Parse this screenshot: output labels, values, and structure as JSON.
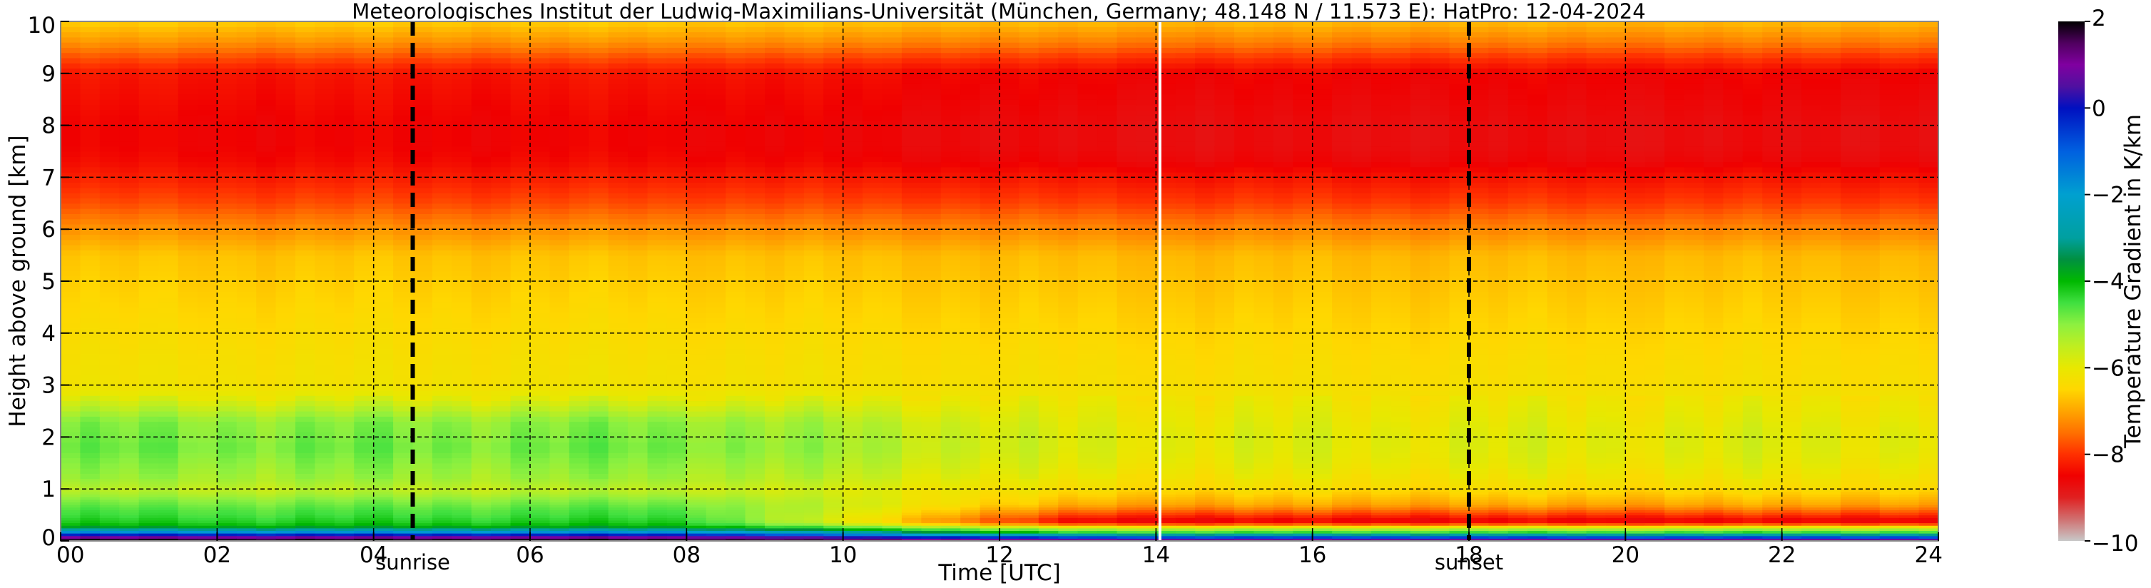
{
  "chart_data": {
    "type": "heatmap",
    "title": "Meteorologisches Institut der Ludwig-Maximilians-Universität (München, Germany; 48.148 N / 11.573 E):    HatPro: 12-04-2024",
    "xlabel": "Time [UTC]",
    "ylabel": "Height above ground [km]",
    "xlim": [
      0,
      24
    ],
    "ylim": [
      0,
      10
    ],
    "x_ticks": [
      0,
      2,
      4,
      6,
      8,
      10,
      12,
      14,
      16,
      18,
      20,
      22,
      24
    ],
    "x_tick_labels": [
      "00",
      "02",
      "04",
      "06",
      "08",
      "10",
      "12",
      "14",
      "16",
      "18",
      "20",
      "22",
      "24"
    ],
    "y_ticks": [
      0,
      1,
      2,
      3,
      4,
      5,
      6,
      7,
      8,
      9,
      10
    ],
    "y_tick_labels": [
      "0",
      "1",
      "2",
      "3",
      "4",
      "5",
      "6",
      "7",
      "8",
      "9",
      "10"
    ],
    "grid": true,
    "markers": [
      {
        "name": "sunrise",
        "time": 4.5,
        "label": "sunrise",
        "style": "dashed",
        "color": "#000000"
      },
      {
        "name": "sunset",
        "time": 18.0,
        "label": "sunset",
        "style": "dashed",
        "color": "#000000"
      },
      {
        "name": "data-gap",
        "time": 14.05,
        "label": "",
        "style": "solid",
        "color": "#ffffff"
      }
    ],
    "colorbar": {
      "label": "Temperature Gradient in K/km",
      "range": [
        -10,
        2
      ],
      "ticks": [
        2,
        0,
        -2,
        -4,
        -6,
        -8,
        -10
      ],
      "tick_labels": [
        "2",
        "0",
        "−2",
        "−4",
        "−6",
        "−8",
        "−10"
      ],
      "stops": [
        {
          "value": -10,
          "color": "#c8c8c8"
        },
        {
          "value": -9.5,
          "color": "#d07070"
        },
        {
          "value": -9,
          "color": "#e02020"
        },
        {
          "value": -8.5,
          "color": "#f00000"
        },
        {
          "value": -8,
          "color": "#ff3000"
        },
        {
          "value": -7.5,
          "color": "#ff7000"
        },
        {
          "value": -7,
          "color": "#ffa500"
        },
        {
          "value": -6.5,
          "color": "#ffd700"
        },
        {
          "value": -6,
          "color": "#e8e800"
        },
        {
          "value": -5.5,
          "color": "#bfee20"
        },
        {
          "value": -5,
          "color": "#8cf040"
        },
        {
          "value": -4.5,
          "color": "#40e040"
        },
        {
          "value": -4,
          "color": "#00b800"
        },
        {
          "value": -3.5,
          "color": "#009040"
        },
        {
          "value": -3,
          "color": "#00a0a0"
        },
        {
          "value": -2,
          "color": "#00a0d0"
        },
        {
          "value": -1,
          "color": "#0060e0"
        },
        {
          "value": 0,
          "color": "#0010c0"
        },
        {
          "value": 0.5,
          "color": "#5010a0"
        },
        {
          "value": 1,
          "color": "#8000a0"
        },
        {
          "value": 1.5,
          "color": "#500060"
        },
        {
          "value": 2,
          "color": "#000000"
        }
      ]
    },
    "profile": {
      "height_km": [
        0.0,
        0.05,
        0.1,
        0.15,
        0.2,
        0.25,
        0.3,
        0.35,
        0.4,
        0.45,
        0.5,
        0.6,
        0.7,
        0.8,
        0.9,
        1.0,
        1.2,
        1.5,
        1.8,
        2.0,
        2.3,
        2.6,
        2.8,
        3.0,
        3.5,
        4.0,
        4.5,
        5.0,
        5.5,
        6.0,
        6.5,
        7.0,
        7.3,
        7.6,
        8.0,
        8.5,
        9.0,
        9.3,
        9.6,
        10.0
      ],
      "morning_K_per_km": [
        2.0,
        1.5,
        0.5,
        -1.0,
        -2.5,
        -3.5,
        -4.0,
        -4.2,
        -4.3,
        -4.4,
        -4.5,
        -4.6,
        -4.8,
        -5.0,
        -5.3,
        -5.5,
        -5.2,
        -5.0,
        -4.8,
        -4.9,
        -5.0,
        -5.6,
        -6.0,
        -6.2,
        -6.3,
        -6.4,
        -6.5,
        -6.6,
        -6.7,
        -7.2,
        -7.8,
        -8.2,
        -8.4,
        -8.5,
        -8.5,
        -8.4,
        -8.3,
        -7.8,
        -7.2,
        -6.6
      ],
      "afternoon_K_per_km": [
        1.0,
        0.5,
        -2.0,
        -4.0,
        -5.0,
        -5.5,
        -7.0,
        -8.3,
        -8.6,
        -8.3,
        -8.0,
        -7.5,
        -7.0,
        -6.8,
        -6.6,
        -6.4,
        -6.2,
        -6.0,
        -5.9,
        -5.9,
        -6.0,
        -6.1,
        -6.2,
        -6.3,
        -6.4,
        -6.5,
        -6.6,
        -6.7,
        -6.8,
        -7.3,
        -7.9,
        -8.3,
        -8.6,
        -8.7,
        -8.7,
        -8.6,
        -8.5,
        -8.0,
        -7.4,
        -6.8
      ]
    }
  }
}
